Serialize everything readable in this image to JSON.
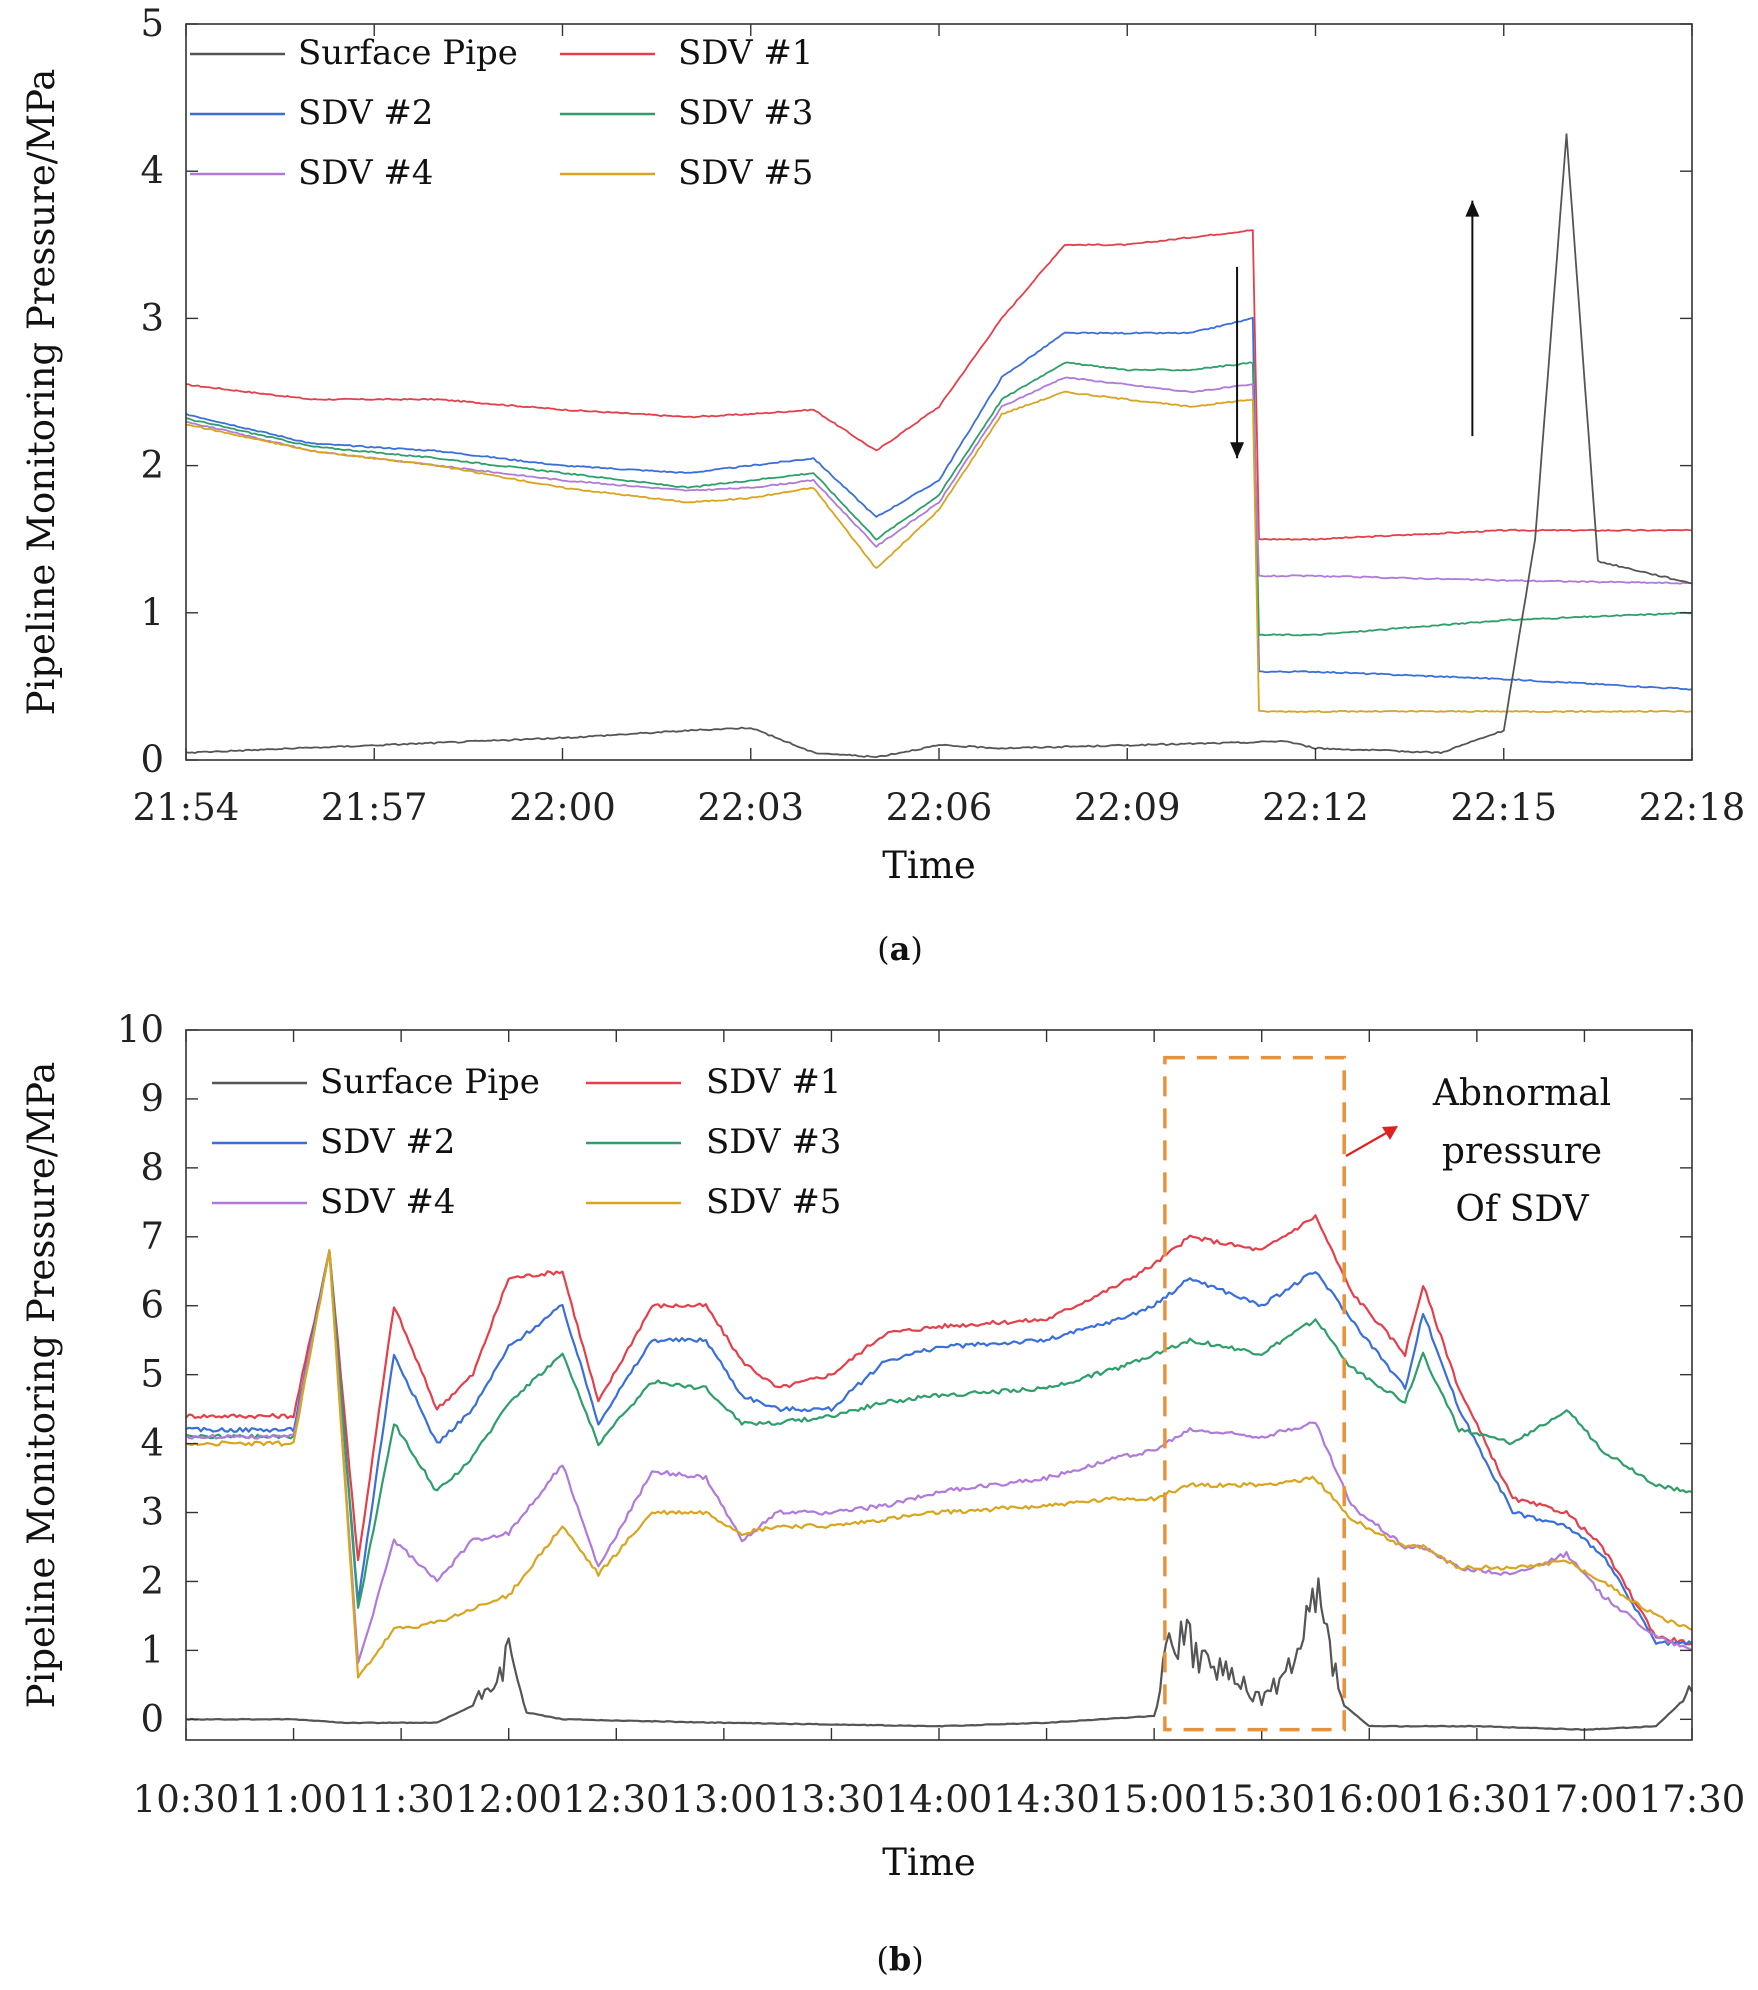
{
  "chart_data": [
    {
      "panel_label": "a",
      "type": "line",
      "xlabel": "Time",
      "ylabel": "Pipeline Monitoring Pressure/MPa",
      "x_ticks": [
        "21:54",
        "21:57",
        "22:00",
        "22:03",
        "22:06",
        "22:09",
        "22:12",
        "22:15",
        "22:18"
      ],
      "xlim": [
        "21:54",
        "22:18"
      ],
      "ylim": [
        0,
        5
      ],
      "y_ticks": [
        "0",
        "1",
        "2",
        "3",
        "4",
        "5"
      ],
      "legend_position": "top-left",
      "grid": false,
      "annotations": [
        {
          "type": "arrow-down",
          "x": "22:10:45",
          "y_from": 3.35,
          "y_to": 2.05
        },
        {
          "type": "arrow-up",
          "x": "22:14:30",
          "y_from": 2.2,
          "y_to": 3.8
        }
      ],
      "series": [
        {
          "name": "SDV #1",
          "color": "#e2404a",
          "x": [
            "21:54",
            "21:56",
            "21:58",
            "22:00",
            "22:02",
            "22:03",
            "22:04",
            "22:05",
            "22:06",
            "22:07",
            "22:08",
            "22:09",
            "22:10",
            "22:11",
            "22:11.1",
            "22:12",
            "22:15",
            "22:18"
          ],
          "values": [
            2.55,
            2.45,
            2.45,
            2.38,
            2.33,
            2.35,
            2.38,
            2.1,
            2.4,
            3.0,
            3.5,
            3.5,
            3.55,
            3.6,
            1.5,
            1.5,
            1.56,
            1.56
          ]
        },
        {
          "name": "SDV #2",
          "color": "#3a6fd8",
          "x": [
            "21:54",
            "21:56",
            "21:58",
            "22:00",
            "22:02",
            "22:03",
            "22:04",
            "22:05",
            "22:06",
            "22:07",
            "22:08",
            "22:09",
            "22:10",
            "22:11",
            "22:11.1",
            "22:12",
            "22:15",
            "22:18"
          ],
          "values": [
            2.35,
            2.15,
            2.1,
            2.0,
            1.95,
            2.0,
            2.05,
            1.65,
            1.9,
            2.6,
            2.9,
            2.9,
            2.9,
            3.0,
            0.6,
            0.6,
            0.55,
            0.48
          ]
        },
        {
          "name": "SDV #3",
          "color": "#2f9e6a",
          "x": [
            "21:54",
            "21:56",
            "21:58",
            "22:00",
            "22:02",
            "22:03",
            "22:04",
            "22:05",
            "22:06",
            "22:07",
            "22:08",
            "22:09",
            "22:10",
            "22:11",
            "22:11.1",
            "22:12",
            "22:15",
            "22:18"
          ],
          "values": [
            2.32,
            2.13,
            2.05,
            1.95,
            1.85,
            1.9,
            1.95,
            1.5,
            1.8,
            2.45,
            2.7,
            2.65,
            2.65,
            2.7,
            0.85,
            0.85,
            0.95,
            1.0
          ]
        },
        {
          "name": "SDV #4",
          "color": "#b07ad8",
          "x": [
            "21:54",
            "21:56",
            "21:58",
            "22:00",
            "22:02",
            "22:03",
            "22:04",
            "22:05",
            "22:06",
            "22:07",
            "22:08",
            "22:09",
            "22:10",
            "22:11",
            "22:11.1",
            "22:12",
            "22:15",
            "22:18"
          ],
          "values": [
            2.3,
            2.1,
            2.0,
            1.9,
            1.83,
            1.85,
            1.9,
            1.45,
            1.75,
            2.4,
            2.6,
            2.55,
            2.5,
            2.55,
            1.25,
            1.25,
            1.22,
            1.2
          ]
        },
        {
          "name": "SDV #5",
          "color": "#d8a520",
          "x": [
            "21:54",
            "21:56",
            "21:58",
            "22:00",
            "22:02",
            "22:03",
            "22:04",
            "22:05",
            "22:06",
            "22:07",
            "22:08",
            "22:09",
            "22:10",
            "22:11",
            "22:11.1",
            "22:12",
            "22:15",
            "22:18"
          ],
          "values": [
            2.28,
            2.1,
            2.0,
            1.85,
            1.75,
            1.78,
            1.85,
            1.3,
            1.7,
            2.35,
            2.5,
            2.45,
            2.4,
            2.45,
            0.33,
            0.33,
            0.33,
            0.33
          ]
        },
        {
          "name": "Surface Pipe",
          "color": "#555555",
          "x": [
            "21:54",
            "21:57",
            "22:00",
            "22:02",
            "22:03",
            "22:04",
            "22:05",
            "22:06",
            "22:07",
            "22:09",
            "22:11",
            "22:11.5",
            "22:12",
            "22:14",
            "22:15",
            "22:15.5",
            "22:16",
            "22:16.5",
            "22:18"
          ],
          "values": [
            0.05,
            0.1,
            0.15,
            0.2,
            0.22,
            0.05,
            0.02,
            0.1,
            0.08,
            0.1,
            0.12,
            0.13,
            0.08,
            0.05,
            0.2,
            1.5,
            4.25,
            1.35,
            1.2
          ]
        }
      ]
    },
    {
      "panel_label": "b",
      "type": "line",
      "xlabel": "Time",
      "ylabel": "Pipeline Monitoring Pressure/MPa",
      "x_ticks": [
        "10:30",
        "11:00",
        "11:30",
        "12:00",
        "12:30",
        "13:00",
        "13:30",
        "14:00",
        "14:30",
        "15:00",
        "15:30",
        "16:00",
        "16:30",
        "17:00",
        "17:30"
      ],
      "xlim": [
        "10:30",
        "17:30"
      ],
      "ylim": [
        -0.3,
        10
      ],
      "y_ticks": [
        "0",
        "1",
        "2",
        "3",
        "4",
        "5",
        "6",
        "7",
        "8",
        "9",
        "10"
      ],
      "legend_position": "top-left",
      "grid": false,
      "annotations": [
        {
          "type": "dashed-box",
          "color": "#e8923a",
          "x_from": "15:03",
          "x_to": "15:53",
          "y_from": -0.15,
          "y_to": 9.6
        },
        {
          "type": "arrow",
          "color": "#dd2222",
          "text": "Abnormal\npressure\nOf SDV"
        }
      ],
      "series": [
        {
          "name": "SDV #1",
          "color": "#e2404a",
          "x": [
            "10:30",
            "11:00",
            "11:10",
            "11:18",
            "11:28",
            "11:40",
            "11:50",
            "12:00",
            "12:15",
            "12:25",
            "12:40",
            "12:55",
            "13:05",
            "13:15",
            "13:30",
            "13:45",
            "14:00",
            "14:30",
            "14:50",
            "15:00",
            "15:10",
            "15:30",
            "15:45",
            "15:55",
            "16:10",
            "16:15",
            "16:25",
            "16:40",
            "16:55",
            "17:05",
            "17:20",
            "17:30"
          ],
          "values": [
            4.4,
            4.4,
            6.8,
            2.3,
            6.0,
            4.5,
            5.0,
            6.4,
            6.5,
            4.6,
            6.0,
            6.0,
            5.2,
            4.8,
            5.0,
            5.6,
            5.7,
            5.8,
            6.3,
            6.6,
            7.0,
            6.8,
            7.3,
            6.2,
            5.3,
            6.3,
            4.8,
            3.2,
            3.0,
            2.5,
            1.2,
            1.1
          ]
        },
        {
          "name": "SDV #2",
          "color": "#3a6fd8",
          "x": [
            "10:30",
            "11:00",
            "11:10",
            "11:18",
            "11:28",
            "11:40",
            "11:50",
            "12:00",
            "12:15",
            "12:25",
            "12:40",
            "12:55",
            "13:05",
            "13:15",
            "13:30",
            "13:45",
            "14:00",
            "14:30",
            "14:50",
            "15:00",
            "15:10",
            "15:30",
            "15:45",
            "15:55",
            "16:10",
            "16:15",
            "16:25",
            "16:40",
            "16:55",
            "17:05",
            "17:20",
            "17:30"
          ],
          "values": [
            4.2,
            4.2,
            6.8,
            1.7,
            5.3,
            4.0,
            4.5,
            5.4,
            6.0,
            4.3,
            5.5,
            5.5,
            4.7,
            4.5,
            4.5,
            5.2,
            5.4,
            5.5,
            5.8,
            6.0,
            6.4,
            6.0,
            6.5,
            5.8,
            4.8,
            5.9,
            4.5,
            3.0,
            2.8,
            2.4,
            1.1,
            1.1
          ]
        },
        {
          "name": "SDV #3",
          "color": "#2f9e6a",
          "x": [
            "10:30",
            "11:00",
            "11:10",
            "11:18",
            "11:28",
            "11:40",
            "11:50",
            "12:00",
            "12:15",
            "12:25",
            "12:40",
            "12:55",
            "13:05",
            "13:15",
            "13:30",
            "13:45",
            "14:00",
            "14:30",
            "14:50",
            "15:00",
            "15:10",
            "15:30",
            "15:45",
            "15:55",
            "16:10",
            "16:15",
            "16:25",
            "16:40",
            "16:55",
            "17:05",
            "17:20",
            "17:30"
          ],
          "values": [
            4.1,
            4.1,
            6.8,
            1.6,
            4.3,
            3.3,
            3.8,
            4.6,
            5.3,
            4.0,
            4.9,
            4.8,
            4.3,
            4.3,
            4.4,
            4.6,
            4.7,
            4.8,
            5.1,
            5.3,
            5.5,
            5.3,
            5.8,
            5.1,
            4.6,
            5.3,
            4.2,
            4.0,
            4.5,
            3.9,
            3.4,
            3.3
          ]
        },
        {
          "name": "SDV #4",
          "color": "#b07ad8",
          "x": [
            "10:30",
            "11:00",
            "11:10",
            "11:18",
            "11:28",
            "11:40",
            "11:50",
            "12:00",
            "12:15",
            "12:25",
            "12:40",
            "12:55",
            "13:05",
            "13:15",
            "13:30",
            "13:45",
            "14:00",
            "14:30",
            "14:50",
            "15:00",
            "15:10",
            "15:30",
            "15:45",
            "15:55",
            "16:10",
            "16:15",
            "16:25",
            "16:40",
            "16:55",
            "17:05",
            "17:20",
            "17:30"
          ],
          "values": [
            4.1,
            4.1,
            6.8,
            0.8,
            2.6,
            2.0,
            2.6,
            2.7,
            3.7,
            2.2,
            3.6,
            3.5,
            2.6,
            3.0,
            3.0,
            3.1,
            3.3,
            3.5,
            3.8,
            3.9,
            4.2,
            4.1,
            4.3,
            3.1,
            2.5,
            2.5,
            2.2,
            2.1,
            2.4,
            1.8,
            1.2,
            1.0
          ]
        },
        {
          "name": "SDV #5",
          "color": "#d8a520",
          "x": [
            "10:30",
            "11:00",
            "11:10",
            "11:18",
            "11:28",
            "11:40",
            "11:50",
            "12:00",
            "12:15",
            "12:25",
            "12:40",
            "12:55",
            "13:05",
            "13:15",
            "13:30",
            "13:45",
            "14:00",
            "14:30",
            "14:50",
            "15:00",
            "15:10",
            "15:30",
            "15:45",
            "15:55",
            "16:10",
            "16:15",
            "16:25",
            "16:40",
            "16:55",
            "17:05",
            "17:20",
            "17:30"
          ],
          "values": [
            4.0,
            4.0,
            6.8,
            0.6,
            1.3,
            1.4,
            1.6,
            1.8,
            2.8,
            2.1,
            3.0,
            3.0,
            2.7,
            2.8,
            2.8,
            2.9,
            3.0,
            3.1,
            3.2,
            3.2,
            3.4,
            3.4,
            3.5,
            2.9,
            2.5,
            2.5,
            2.2,
            2.2,
            2.3,
            2.0,
            1.5,
            1.3
          ]
        },
        {
          "name": "Surface Pipe",
          "color": "#555555",
          "x": [
            "10:30",
            "11:00",
            "11:15",
            "11:30",
            "11:40",
            "11:50",
            "12:00",
            "12:05",
            "12:15",
            "13:00",
            "14:00",
            "14:30",
            "15:00",
            "15:05",
            "15:15",
            "15:30",
            "15:40",
            "15:45",
            "15:53",
            "16:00",
            "16:30",
            "17:00",
            "17:20",
            "17:30"
          ],
          "values": [
            0.0,
            0.0,
            -0.05,
            -0.05,
            -0.05,
            0.2,
            0.9,
            0.1,
            0.0,
            -0.05,
            -0.1,
            -0.05,
            0.05,
            1.3,
            0.8,
            0.3,
            0.8,
            1.8,
            0.2,
            -0.1,
            -0.1,
            -0.15,
            -0.1,
            0.4
          ]
        }
      ]
    }
  ]
}
